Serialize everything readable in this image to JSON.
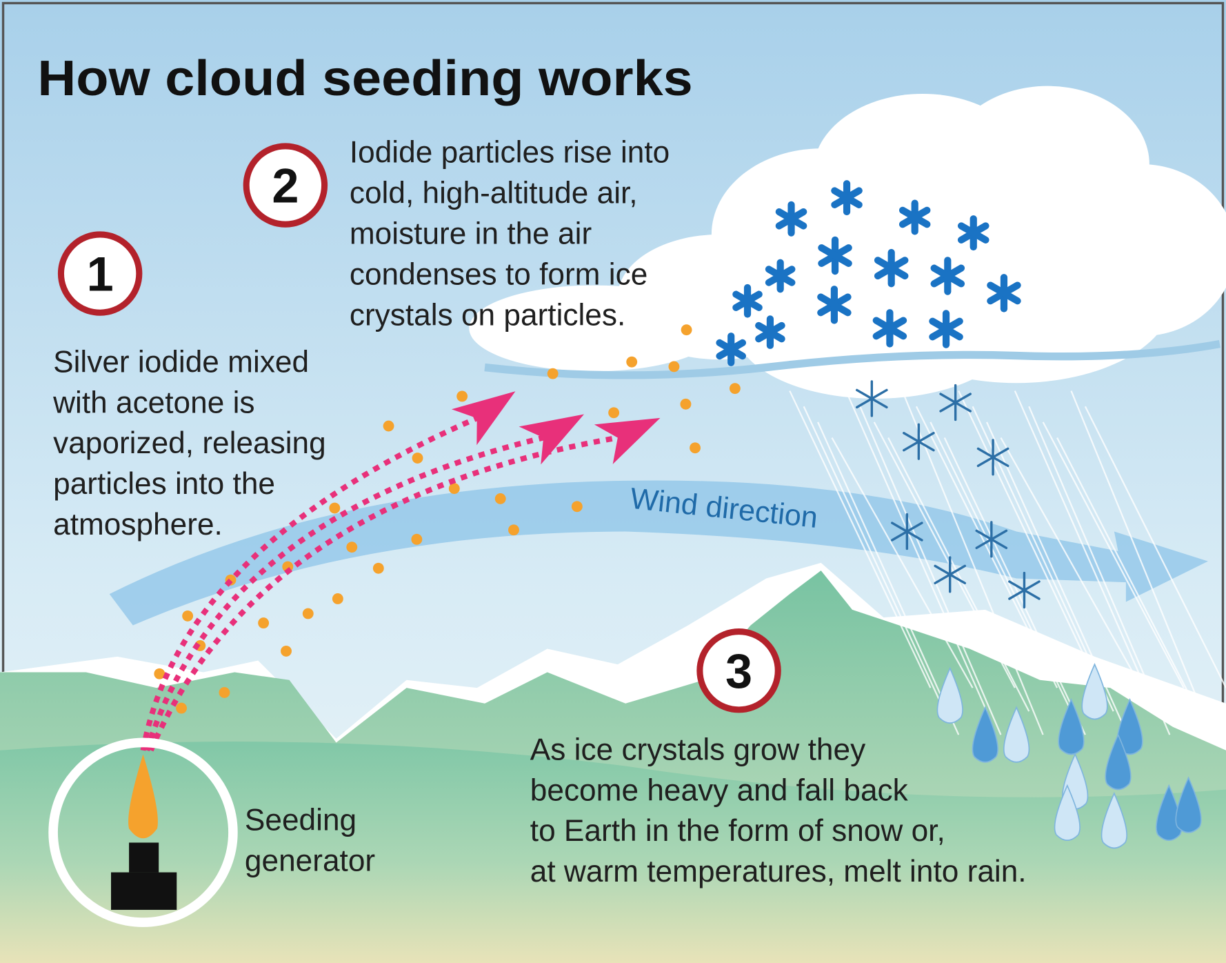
{
  "title": "How cloud seeding works",
  "steps": [
    {
      "number": "1",
      "lines": [
        "Silver iodide mixed",
        "with acetone is",
        "vaporized, releasing",
        "particles into the",
        "atmosphere."
      ]
    },
    {
      "number": "2",
      "lines": [
        "Iodide particles rise into",
        "cold, high-altitude air,",
        "moisture in the air",
        "condenses to form ice",
        "crystals on particles."
      ]
    },
    {
      "number": "3",
      "lines": [
        "As ice crystals grow they",
        "become heavy and fall back",
        "to Earth in the form of snow or,",
        "at warm temperatures, melt into rain."
      ]
    }
  ],
  "generator_label": [
    "Seeding",
    "generator"
  ],
  "wind_label": "Wind direction"
}
